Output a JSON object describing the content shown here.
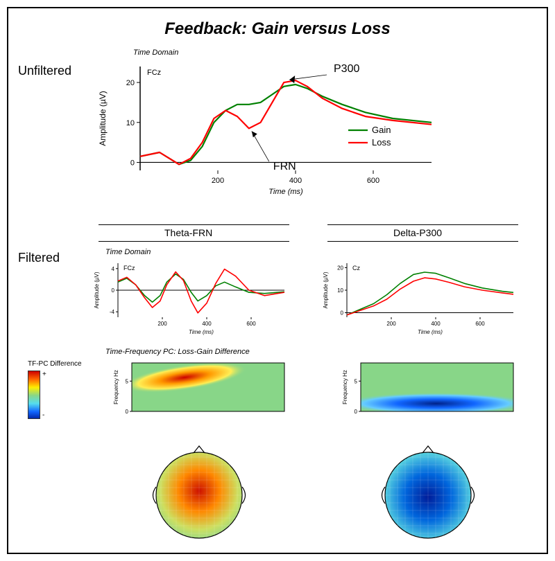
{
  "title": "Feedback: Gain versus Loss",
  "labels": {
    "unfiltered": "Unfiltered",
    "filtered": "Filtered",
    "time_domain": "Time Domain",
    "tf_pc_caption": "Time-Frequency PC: Loss-Gain Difference",
    "tf_pc_diff": "TF-PC Difference",
    "theta_frn": "Theta-FRN",
    "delta_p300": "Delta-P300",
    "p300": "P300",
    "frn": "FRN",
    "amplitude": "Amplitude (µV)",
    "time_ms": "Time (ms)",
    "freq_hz": "Frequency Hz",
    "fcz": "FCz",
    "cz": "Cz",
    "gain": "Gain",
    "loss": "Loss",
    "plus": "+",
    "minus": "-"
  },
  "colors": {
    "gain": "#008000",
    "loss": "#ff0000",
    "axis": "#000000",
    "bg": "#ffffff",
    "heatmap_mid": "#88d688",
    "heatmap_hot1": "#ffee55",
    "heatmap_hot2": "#ff9900",
    "heatmap_hot3": "#cc0000",
    "heatmap_cold1": "#66ccff",
    "heatmap_cold2": "#1166ff",
    "heatmap_cold3": "#002288",
    "topo_neutral": "#8fd98f",
    "topo_hot_center": "#cc1100",
    "topo_hot_mid": "#ff8800",
    "topo_hot_edge": "#cddf60",
    "topo_cold_center": "#001c99",
    "topo_cold_mid": "#0066dd",
    "topo_cold_edge": "#55d0e0"
  },
  "unfiltered_chart": {
    "type": "line",
    "x_ms": [
      0,
      50,
      100,
      130,
      160,
      190,
      220,
      250,
      280,
      310,
      340,
      370,
      400,
      430,
      470,
      520,
      580,
      650,
      750
    ],
    "gain_uv": [
      1.5,
      2.5,
      -0.5,
      0.5,
      4,
      10,
      13,
      14.5,
      14.5,
      15,
      17,
      19,
      19.5,
      18.5,
      16.5,
      14.5,
      12.5,
      11,
      10
    ],
    "loss_uv": [
      1.5,
      2.5,
      -0.5,
      1,
      5,
      11,
      13,
      11.5,
      8.5,
      10,
      15,
      20,
      20.5,
      19,
      16,
      13.5,
      11.5,
      10.5,
      9.5
    ],
    "xlim": [
      0,
      750
    ],
    "ylim": [
      -2,
      24
    ],
    "xticks": [
      200,
      400,
      600
    ],
    "yticks": [
      0,
      10,
      20
    ],
    "line_width": 2.2,
    "title_fontsize": 11,
    "axis_fontsize": 11
  },
  "theta_chart": {
    "type": "line",
    "x_ms": [
      0,
      40,
      80,
      120,
      155,
      190,
      220,
      260,
      295,
      330,
      360,
      400,
      440,
      480,
      530,
      590,
      660,
      750
    ],
    "gain_uv": [
      1.5,
      2.2,
      1,
      -1,
      -2.2,
      -1,
      1.5,
      3,
      2,
      -0.4,
      -2,
      -1,
      0.8,
      1.5,
      0.6,
      -0.4,
      -0.6,
      -0.3
    ],
    "loss_uv": [
      1.7,
      2.4,
      1,
      -1.4,
      -3.2,
      -2,
      1,
      3.4,
      1.8,
      -2,
      -4.2,
      -2.4,
      1.2,
      3.9,
      2.6,
      0,
      -1,
      -0.4
    ],
    "xlim": [
      0,
      750
    ],
    "ylim": [
      -5,
      5
    ],
    "xticks": [
      200,
      400,
      600
    ],
    "yticks": [
      -4,
      0,
      4
    ],
    "line_width": 1.6
  },
  "delta_chart": {
    "type": "line",
    "x_ms": [
      0,
      60,
      120,
      180,
      240,
      300,
      350,
      400,
      460,
      530,
      610,
      700,
      750
    ],
    "gain_uv": [
      -1,
      1.5,
      4,
      8,
      13,
      17,
      18,
      17.5,
      15.5,
      13,
      11,
      9.5,
      9
    ],
    "loss_uv": [
      -1,
      1,
      3,
      6,
      10.5,
      14,
      15.5,
      15,
      13.5,
      11.5,
      10,
      8.8,
      8.2
    ],
    "xlim": [
      0,
      750
    ],
    "ylim": [
      -2,
      22
    ],
    "xticks": [
      200,
      400,
      600
    ],
    "yticks": [
      0,
      10,
      20
    ],
    "line_width": 1.6
  },
  "theta_heatmap": {
    "type": "heatmap",
    "xlim_ms": [
      0,
      750
    ],
    "ylim_hz": [
      0,
      8
    ],
    "yticks": [
      0,
      5
    ],
    "blob_center_ms": 260,
    "blob_center_hz": 5.6,
    "blob_rx": 90,
    "blob_ry": 18,
    "polarity": "positive"
  },
  "delta_heatmap": {
    "type": "heatmap",
    "xlim_ms": [
      0,
      750
    ],
    "ylim_hz": [
      0,
      8
    ],
    "yticks": [
      0,
      5
    ],
    "blob_center_ms": 370,
    "blob_center_hz": 1.3,
    "blob_rx": 140,
    "blob_ry": 16,
    "polarity": "negative"
  },
  "topo_theta": {
    "type": "topomap",
    "polarity": "positive",
    "center_offset_y": -0.05,
    "center_offset_x": 0.0
  },
  "topo_delta": {
    "type": "topomap",
    "polarity": "negative",
    "center_offset_y": 0.02,
    "center_offset_x": 0.0
  },
  "colorbar": {
    "stops": [
      "#cc0000",
      "#ff6600",
      "#ffee00",
      "#88d688",
      "#55ddee",
      "#1166ff",
      "#001c99"
    ]
  }
}
